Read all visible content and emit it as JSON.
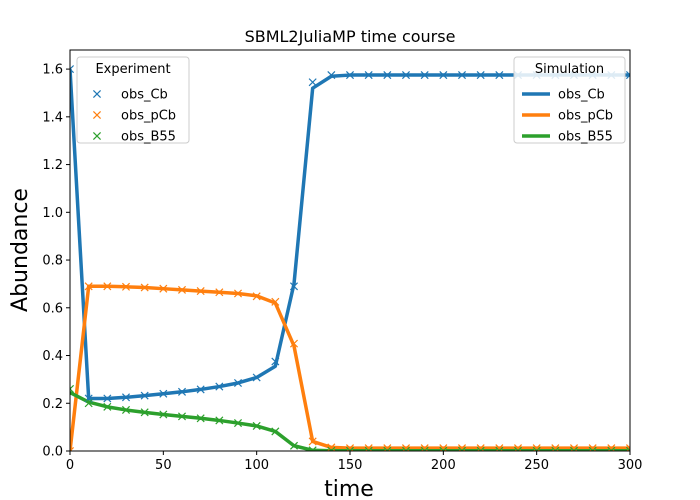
{
  "chart_data": {
    "type": "line",
    "title": "SBML2JuliaMP time course",
    "xlabel": "time",
    "ylabel": "Abundance",
    "xlim": [
      0,
      300
    ],
    "ylim": [
      0,
      1.68
    ],
    "xticks": [
      0,
      50,
      100,
      150,
      200,
      250,
      300
    ],
    "yticks": [
      0.0,
      0.2,
      0.4,
      0.6,
      0.8,
      1.0,
      1.2,
      1.4,
      1.6
    ],
    "xtick_labels": [
      "0",
      "50",
      "100",
      "150",
      "200",
      "250",
      "300"
    ],
    "ytick_labels": [
      "0.0",
      "0.2",
      "0.4",
      "0.6",
      "0.8",
      "1.0",
      "1.2",
      "1.4",
      "1.6"
    ],
    "grid": false,
    "legends": [
      {
        "title": "Experiment",
        "placement": "upper-left",
        "entries": [
          "obs_Cb",
          "obs_pCb",
          "obs_B55"
        ],
        "marker": "x"
      },
      {
        "title": "Simulation",
        "placement": "upper-right",
        "entries": [
          "obs_Cb",
          "obs_pCb",
          "obs_B55"
        ],
        "marker": "line"
      }
    ],
    "colors": {
      "obs_Cb": "#1f77b4",
      "obs_pCb": "#ff7f0e",
      "obs_B55": "#2ca02c"
    },
    "simulation": [
      {
        "name": "obs_Cb",
        "x": [
          0,
          10,
          20,
          30,
          40,
          50,
          60,
          70,
          80,
          90,
          100,
          110,
          120,
          130,
          140,
          150,
          160,
          170,
          180,
          190,
          200,
          210,
          220,
          230,
          240,
          250,
          260,
          270,
          280,
          290,
          300
        ],
        "y": [
          1.6,
          0.22,
          0.22,
          0.225,
          0.232,
          0.24,
          0.248,
          0.258,
          0.27,
          0.285,
          0.308,
          0.355,
          0.7,
          1.52,
          1.57,
          1.575,
          1.575,
          1.575,
          1.575,
          1.575,
          1.575,
          1.575,
          1.575,
          1.575,
          1.575,
          1.575,
          1.575,
          1.575,
          1.575,
          1.575,
          1.575
        ]
      },
      {
        "name": "obs_pCb",
        "x": [
          0,
          10,
          20,
          30,
          40,
          50,
          60,
          70,
          80,
          90,
          100,
          110,
          120,
          130,
          140,
          150,
          160,
          170,
          180,
          190,
          200,
          210,
          220,
          230,
          240,
          250,
          260,
          270,
          280,
          290,
          300
        ],
        "y": [
          0.0,
          0.69,
          0.69,
          0.688,
          0.685,
          0.68,
          0.675,
          0.67,
          0.665,
          0.66,
          0.65,
          0.62,
          0.44,
          0.04,
          0.015,
          0.012,
          0.012,
          0.012,
          0.012,
          0.012,
          0.012,
          0.012,
          0.012,
          0.012,
          0.012,
          0.012,
          0.012,
          0.012,
          0.012,
          0.012,
          0.012
        ]
      },
      {
        "name": "obs_B55",
        "x": [
          0,
          10,
          20,
          30,
          40,
          50,
          60,
          70,
          80,
          90,
          100,
          110,
          120,
          130,
          140,
          150,
          160,
          170,
          180,
          190,
          200,
          210,
          220,
          230,
          240,
          250,
          260,
          270,
          280,
          290,
          300
        ],
        "y": [
          0.245,
          0.205,
          0.185,
          0.172,
          0.162,
          0.153,
          0.145,
          0.137,
          0.128,
          0.117,
          0.105,
          0.082,
          0.022,
          0.003,
          0.001,
          0.001,
          0.001,
          0.001,
          0.001,
          0.001,
          0.001,
          0.001,
          0.001,
          0.001,
          0.001,
          0.001,
          0.001,
          0.001,
          0.001,
          0.001,
          0.001
        ]
      }
    ],
    "experiment": [
      {
        "name": "obs_Cb",
        "x": [
          0,
          10,
          20,
          30,
          40,
          50,
          60,
          70,
          80,
          90,
          100,
          110,
          120,
          130,
          140,
          150,
          160,
          170,
          180,
          190,
          200,
          210,
          220,
          230,
          240,
          250,
          260,
          270,
          280,
          290,
          300
        ],
        "y": [
          1.6,
          0.22,
          0.22,
          0.225,
          0.232,
          0.24,
          0.248,
          0.258,
          0.27,
          0.285,
          0.308,
          0.375,
          0.69,
          1.545,
          1.575,
          1.575,
          1.575,
          1.575,
          1.575,
          1.575,
          1.575,
          1.575,
          1.575,
          1.575,
          1.575,
          1.575,
          1.575,
          1.575,
          1.575,
          1.575,
          1.575
        ]
      },
      {
        "name": "obs_pCb",
        "x": [
          0,
          10,
          20,
          30,
          40,
          50,
          60,
          70,
          80,
          90,
          100,
          110,
          120,
          130,
          140,
          150,
          160,
          170,
          180,
          190,
          200,
          210,
          220,
          230,
          240,
          250,
          260,
          270,
          280,
          290,
          300
        ],
        "y": [
          0.0,
          0.69,
          0.69,
          0.688,
          0.685,
          0.68,
          0.675,
          0.67,
          0.665,
          0.66,
          0.648,
          0.625,
          0.45,
          0.04,
          0.015,
          0.012,
          0.012,
          0.012,
          0.012,
          0.012,
          0.012,
          0.012,
          0.012,
          0.012,
          0.012,
          0.012,
          0.012,
          0.012,
          0.012,
          0.012,
          0.012
        ]
      },
      {
        "name": "obs_B55",
        "x": [
          0,
          10,
          20,
          30,
          40,
          50,
          60,
          70,
          80,
          90,
          100,
          110,
          120,
          130,
          140,
          150,
          160,
          170,
          180,
          190,
          200,
          210,
          220,
          230,
          240,
          250,
          260,
          270,
          280,
          290,
          300
        ],
        "y": [
          0.26,
          0.2,
          0.185,
          0.172,
          0.162,
          0.153,
          0.145,
          0.137,
          0.128,
          0.117,
          0.105,
          0.082,
          0.022,
          0.003,
          0.001,
          0.001,
          0.001,
          0.001,
          0.001,
          0.001,
          0.001,
          0.001,
          0.001,
          0.001,
          0.001,
          0.001,
          0.001,
          0.001,
          0.001,
          0.001,
          0.001
        ]
      }
    ]
  }
}
